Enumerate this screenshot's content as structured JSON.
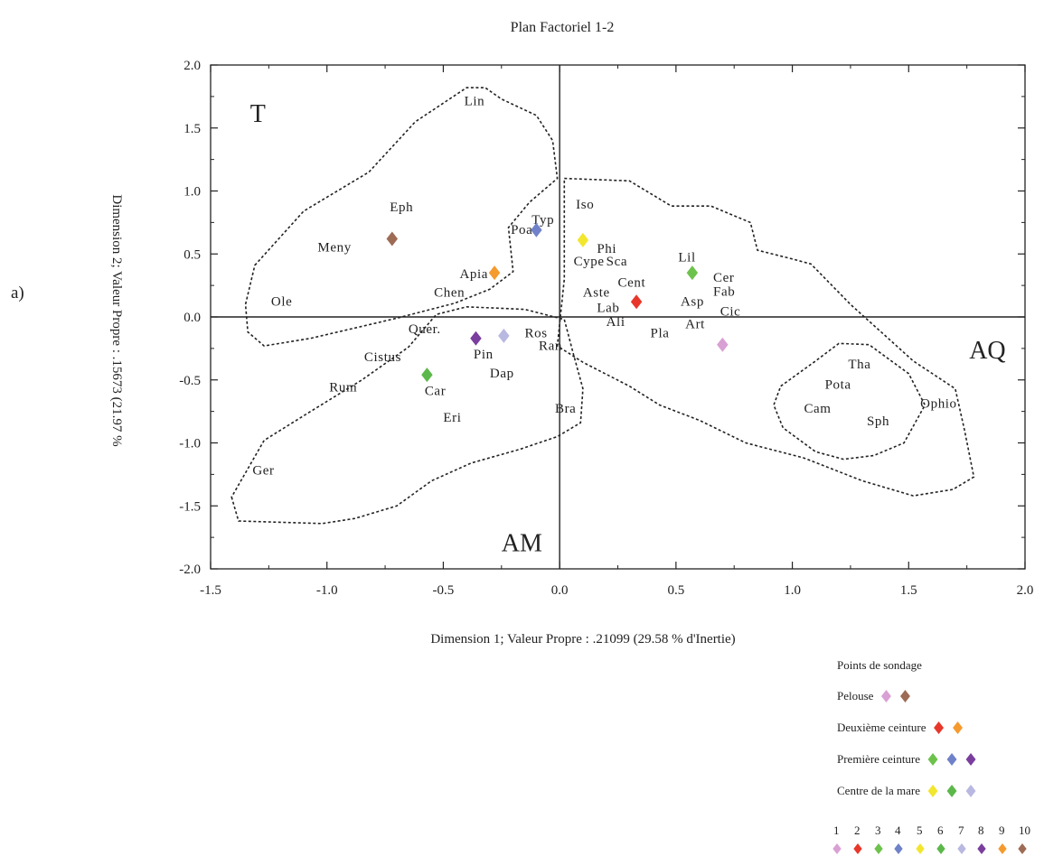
{
  "panel_label": "a)",
  "chart_data": {
    "type": "scatter",
    "title": "Plan Factoriel 1-2",
    "xlabel": "Dimension 1; Valeur Propre : .21099 (29.58  % d'Inertie)",
    "ylabel": "Dimension 2; Valeur Propre : .15673 (21.97  %",
    "xlim": [
      -1.5,
      2.0
    ],
    "ylim": [
      -2.0,
      2.0
    ],
    "x_ticks": [
      "-1.5",
      "-1.0",
      "-0.5",
      "0.0",
      "0.5",
      "1.0",
      "1.5",
      "2.0"
    ],
    "y_ticks": [
      "2.0",
      "1.5",
      "1.0",
      "0.5",
      "0.0",
      "-0.5",
      "-1.0",
      "-1.5",
      "-2.0"
    ],
    "grid": false,
    "zero_lines": true,
    "region_labels": [
      {
        "text": "T",
        "x": -1.33,
        "y": 1.55
      },
      {
        "text": "AQ",
        "x": 1.76,
        "y": -0.33
      },
      {
        "text": "AM",
        "x": -0.25,
        "y": -1.86
      }
    ],
    "species": [
      {
        "text": "Lin",
        "x": -0.41,
        "y": 1.68
      },
      {
        "text": "Eph",
        "x": -0.73,
        "y": 0.84
      },
      {
        "text": "Meny",
        "x": -1.04,
        "y": 0.52
      },
      {
        "text": "Ole",
        "x": -1.24,
        "y": 0.09
      },
      {
        "text": "Chen",
        "x": -0.54,
        "y": 0.16
      },
      {
        "text": "Apia",
        "x": -0.43,
        "y": 0.31
      },
      {
        "text": "Poa",
        "x": -0.21,
        "y": 0.66
      },
      {
        "text": "Typ",
        "x": -0.12,
        "y": 0.74
      },
      {
        "text": "Iso",
        "x": 0.07,
        "y": 0.86
      },
      {
        "text": "Phi",
        "x": 0.16,
        "y": 0.51
      },
      {
        "text": "Cype",
        "x": 0.06,
        "y": 0.41
      },
      {
        "text": "Sca",
        "x": 0.2,
        "y": 0.41
      },
      {
        "text": "Cent",
        "x": 0.25,
        "y": 0.24
      },
      {
        "text": "Aste",
        "x": 0.1,
        "y": 0.16
      },
      {
        "text": "Lab",
        "x": 0.16,
        "y": 0.04
      },
      {
        "text": "Ali",
        "x": 0.2,
        "y": -0.07
      },
      {
        "text": "Lil",
        "x": 0.51,
        "y": 0.44
      },
      {
        "text": "Cer",
        "x": 0.66,
        "y": 0.28
      },
      {
        "text": "Fab",
        "x": 0.66,
        "y": 0.17
      },
      {
        "text": "Asp",
        "x": 0.52,
        "y": 0.09
      },
      {
        "text": "Cic",
        "x": 0.69,
        "y": 0.01
      },
      {
        "text": "Art",
        "x": 0.54,
        "y": -0.09
      },
      {
        "text": "Pla",
        "x": 0.39,
        "y": -0.16
      },
      {
        "text": "Quer.",
        "x": -0.65,
        "y": -0.13
      },
      {
        "text": "Ros",
        "x": -0.15,
        "y": -0.16
      },
      {
        "text": "Ran",
        "x": -0.09,
        "y": -0.26
      },
      {
        "text": "Cistus",
        "x": -0.84,
        "y": -0.35
      },
      {
        "text": "Pin",
        "x": -0.37,
        "y": -0.33
      },
      {
        "text": "Dap",
        "x": -0.3,
        "y": -0.48
      },
      {
        "text": "Rum",
        "x": -0.99,
        "y": -0.59
      },
      {
        "text": "Car",
        "x": -0.58,
        "y": -0.62
      },
      {
        "text": "Eri",
        "x": -0.5,
        "y": -0.83
      },
      {
        "text": "Bra",
        "x": -0.02,
        "y": -0.76
      },
      {
        "text": "Ger",
        "x": -1.32,
        "y": -1.25
      },
      {
        "text": "Tha",
        "x": 1.24,
        "y": -0.41
      },
      {
        "text": "Pota",
        "x": 1.14,
        "y": -0.57
      },
      {
        "text": "Cam",
        "x": 1.05,
        "y": -0.76
      },
      {
        "text": "Sph",
        "x": 1.32,
        "y": -0.86
      },
      {
        "text": "Ophio",
        "x": 1.55,
        "y": -0.72
      }
    ],
    "points": [
      {
        "id": "1",
        "x": 0.7,
        "y": -0.22,
        "color": "#d9a0d4"
      },
      {
        "id": "2",
        "x": 0.33,
        "y": 0.12,
        "color": "#e8372a"
      },
      {
        "id": "3",
        "x": 0.57,
        "y": 0.35,
        "color": "#6dc24b"
      },
      {
        "id": "4",
        "x": -0.1,
        "y": 0.69,
        "color": "#6f82c9"
      },
      {
        "id": "5",
        "x": 0.1,
        "y": 0.61,
        "color": "#f2e62e"
      },
      {
        "id": "6",
        "x": -0.57,
        "y": -0.46,
        "color": "#5cb84a"
      },
      {
        "id": "7",
        "x": -0.24,
        "y": -0.15,
        "color": "#b8b8e0"
      },
      {
        "id": "8",
        "x": -0.36,
        "y": -0.17,
        "color": "#7a3e9e"
      },
      {
        "id": "9",
        "x": -0.28,
        "y": 0.35,
        "color": "#f59a2e"
      },
      {
        "id": "10",
        "x": -0.72,
        "y": 0.62,
        "color": "#9e6b55"
      }
    ],
    "contours": [
      {
        "name": "T",
        "points": [
          [
            -1.31,
            0.41
          ],
          [
            -1.1,
            0.84
          ],
          [
            -0.82,
            1.15
          ],
          [
            -0.62,
            1.55
          ],
          [
            -0.4,
            1.82
          ],
          [
            -0.32,
            1.82
          ],
          [
            -0.25,
            1.73
          ],
          [
            -0.1,
            1.6
          ],
          [
            -0.03,
            1.4
          ],
          [
            -0.01,
            1.1
          ],
          [
            -0.13,
            0.91
          ],
          [
            -0.22,
            0.71
          ],
          [
            -0.2,
            0.36
          ],
          [
            -0.3,
            0.22
          ],
          [
            -0.45,
            0.11
          ],
          [
            -0.7,
            -0.01
          ],
          [
            -1.07,
            -0.17
          ],
          [
            -1.27,
            -0.23
          ],
          [
            -1.34,
            -0.12
          ],
          [
            -1.35,
            0.1
          ],
          [
            -1.31,
            0.41
          ]
        ]
      },
      {
        "name": "AM",
        "points": [
          [
            -1.41,
            -1.43
          ],
          [
            -1.38,
            -1.62
          ],
          [
            -1.02,
            -1.64
          ],
          [
            -0.88,
            -1.6
          ],
          [
            -0.7,
            -1.5
          ],
          [
            -0.55,
            -1.3
          ],
          [
            -0.38,
            -1.16
          ],
          [
            -0.17,
            -1.05
          ],
          [
            -0.01,
            -0.95
          ],
          [
            0.09,
            -0.84
          ],
          [
            0.1,
            -0.57
          ],
          [
            0.06,
            -0.3
          ],
          [
            0.02,
            -0.02
          ],
          [
            -0.15,
            0.06
          ],
          [
            -0.4,
            0.08
          ],
          [
            -0.53,
            0.02
          ],
          [
            -0.65,
            -0.24
          ],
          [
            -0.85,
            -0.5
          ],
          [
            -1.07,
            -0.75
          ],
          [
            -1.27,
            -0.98
          ],
          [
            -1.41,
            -1.43
          ]
        ]
      },
      {
        "name": "AQ",
        "points": [
          [
            0.02,
            1.1
          ],
          [
            0.3,
            1.08
          ],
          [
            0.48,
            0.88
          ],
          [
            0.65,
            0.88
          ],
          [
            0.82,
            0.75
          ],
          [
            0.85,
            0.53
          ],
          [
            1.0,
            0.46
          ],
          [
            1.08,
            0.42
          ],
          [
            1.25,
            0.1
          ],
          [
            1.52,
            -0.35
          ],
          [
            1.7,
            -0.57
          ],
          [
            1.74,
            -0.9
          ],
          [
            1.78,
            -1.27
          ],
          [
            1.69,
            -1.37
          ],
          [
            1.52,
            -1.42
          ],
          [
            1.3,
            -1.3
          ],
          [
            1.05,
            -1.12
          ],
          [
            0.8,
            -1.0
          ],
          [
            0.6,
            -0.82
          ],
          [
            0.43,
            -0.7
          ],
          [
            0.3,
            -0.55
          ],
          [
            0.1,
            -0.36
          ],
          [
            -0.01,
            -0.23
          ],
          [
            0.02,
            0.3
          ],
          [
            0.02,
            1.1
          ]
        ]
      },
      {
        "name": "AQ-inner",
        "points": [
          [
            0.95,
            -0.55
          ],
          [
            1.1,
            -0.35
          ],
          [
            1.2,
            -0.21
          ],
          [
            1.33,
            -0.22
          ],
          [
            1.5,
            -0.45
          ],
          [
            1.57,
            -0.7
          ],
          [
            1.48,
            -1.0
          ],
          [
            1.35,
            -1.1
          ],
          [
            1.22,
            -1.13
          ],
          [
            1.1,
            -1.07
          ],
          [
            0.96,
            -0.88
          ],
          [
            0.92,
            -0.7
          ],
          [
            0.95,
            -0.55
          ]
        ]
      }
    ]
  },
  "legend": {
    "title": "Points de sondage",
    "groups": [
      {
        "label": "Pelouse",
        "colors": [
          "#d9a0d4",
          "#9e6b55"
        ]
      },
      {
        "label": "Deuxième ceinture",
        "colors": [
          "#e8372a",
          "#f59a2e"
        ]
      },
      {
        "label": "Première ceinture",
        "colors": [
          "#6dc24b",
          "#6f82c9",
          "#7a3e9e"
        ]
      },
      {
        "label": "Centre de la mare",
        "colors": [
          "#f2e62e",
          "#5cb84a",
          "#b8b8e0"
        ]
      }
    ],
    "index_labels": [
      "1",
      "2",
      "3",
      "4",
      "5",
      "6",
      "7",
      "8",
      "9",
      "10"
    ],
    "index_colors": [
      "#d9a0d4",
      "#e8372a",
      "#6dc24b",
      "#6f82c9",
      "#f2e62e",
      "#5cb84a",
      "#b8b8e0",
      "#7a3e9e",
      "#f59a2e",
      "#9e6b55"
    ]
  }
}
